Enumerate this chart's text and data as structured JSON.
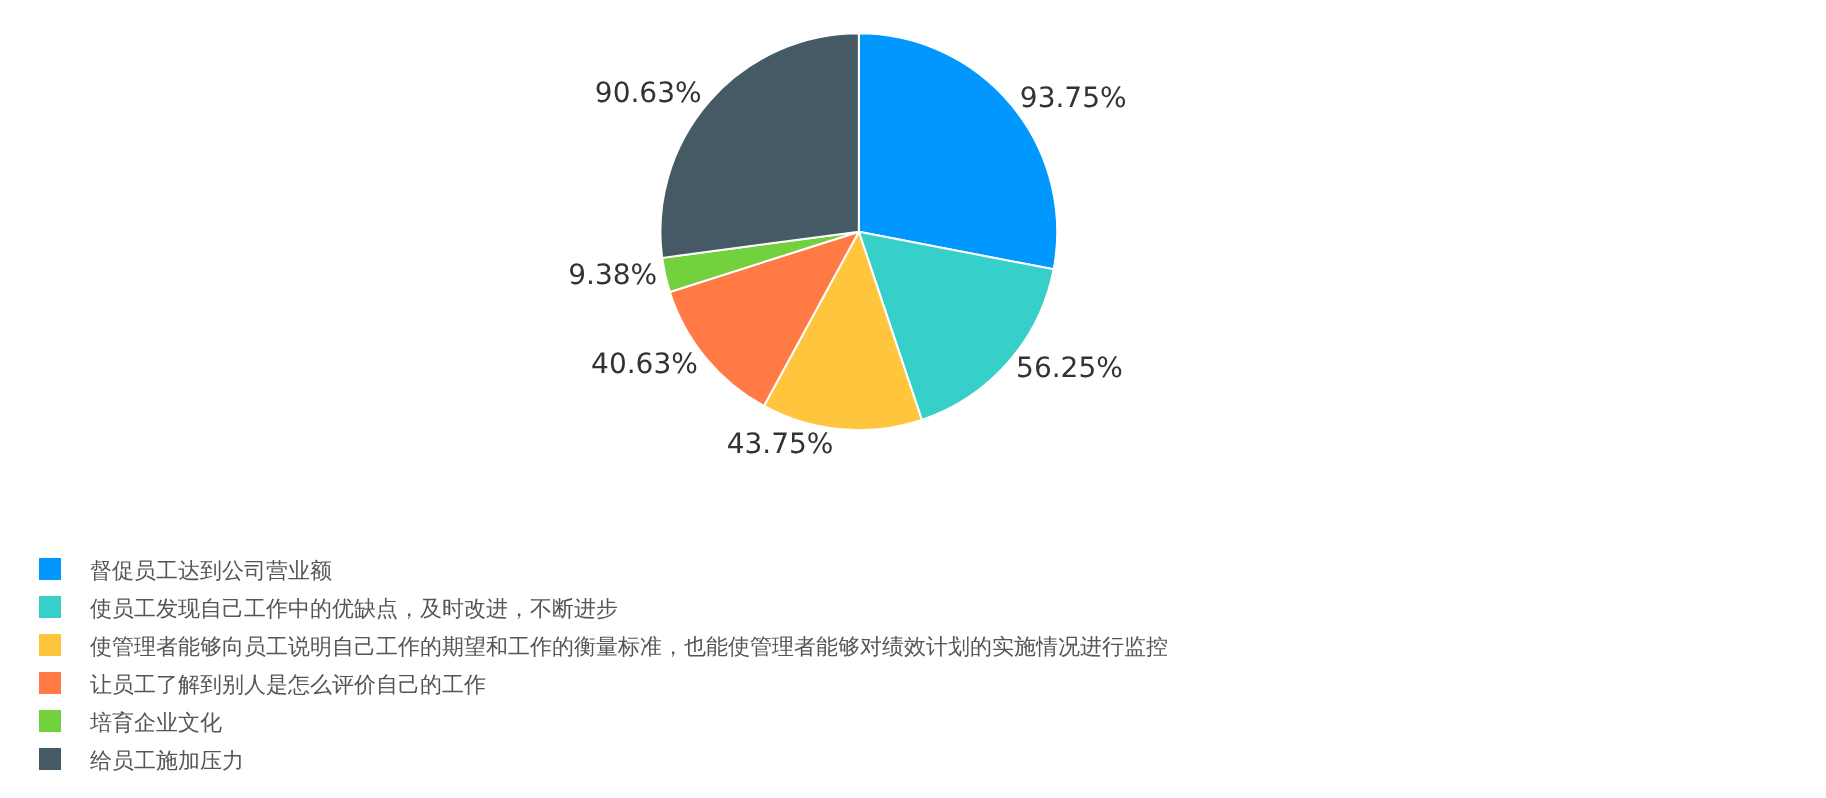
{
  "chart_data": {
    "type": "pie",
    "categories": [
      "督促员工达到公司营业额",
      "使员工发现自己工作中的优缺点，及时改进，不断进步",
      "使管理者能够向员工说明自己工作的期望和工作的衡量标准，也能使管理者能够对绩效计划的实施情况进行监控",
      "让员工了解到别人是怎么评价自己的工作",
      "培育企业文化",
      "给员工施加压力"
    ],
    "values": [
      93.75,
      56.25,
      43.75,
      40.63,
      9.38,
      90.63
    ],
    "value_labels": [
      "93.75%",
      "56.25%",
      "43.75%",
      "40.63%",
      "9.38%",
      "90.63%"
    ],
    "colors": [
      "#0098ff",
      "#36cfc9",
      "#ffc53d",
      "#ff7a45",
      "#73d13d",
      "#465a65"
    ],
    "legend": "bottom left"
  }
}
